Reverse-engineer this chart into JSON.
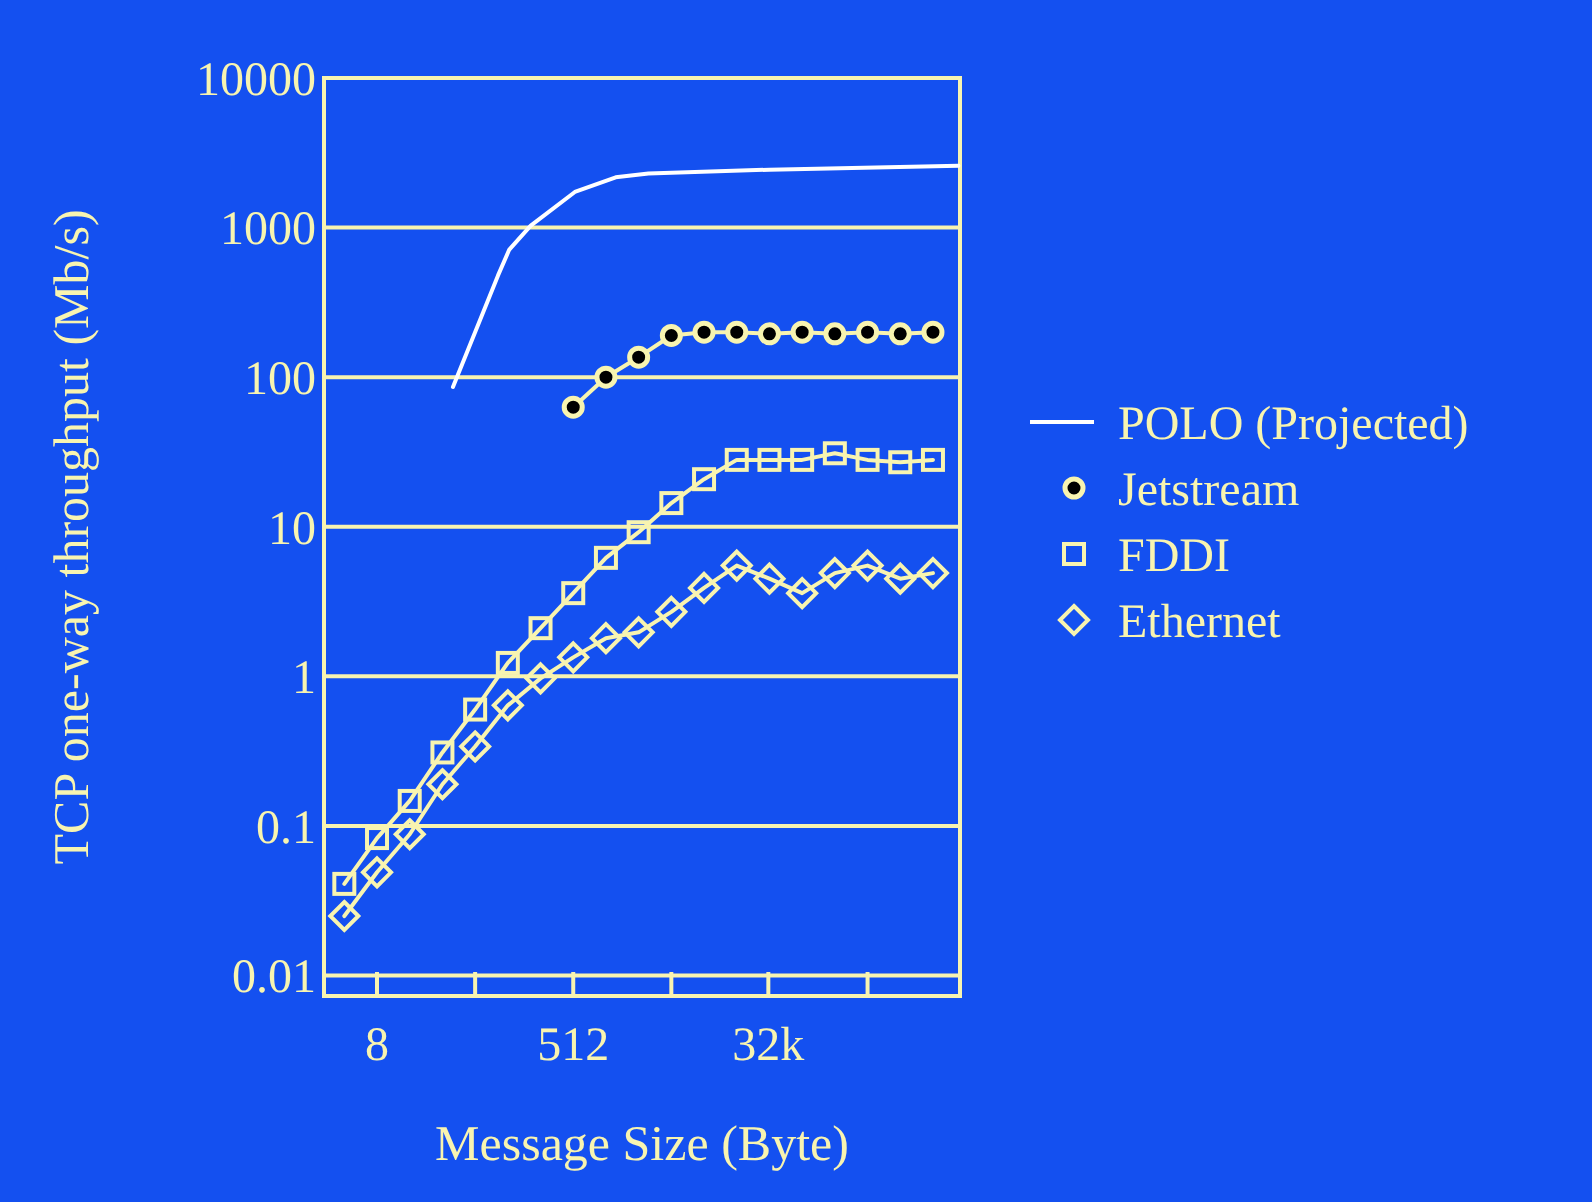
{
  "chart_data": {
    "type": "line",
    "xlabel": "Message Size (Byte)",
    "ylabel": "TCP one-way throughput (Mb/s)",
    "log": "xy",
    "grid": "y",
    "legend": "right",
    "xlim": [
      2.6,
      1860000
    ],
    "ylim": [
      0.0073,
      10000
    ],
    "xticks": [
      8,
      {
        "value": 64,
        "label": null
      },
      512,
      {
        "value": 4096,
        "label": null
      },
      {
        "value": 32000,
        "label": "32k"
      },
      {
        "value": 262144,
        "label": null
      }
    ],
    "yticks": [
      0.01,
      0.1,
      1,
      10,
      100,
      1000,
      10000
    ],
    "series": [
      {
        "name": "POLO (Projected)",
        "color": "#ffffff",
        "marker": "none",
        "x": [
          40,
          104,
          132,
          208,
          530,
          1260,
          2520,
          32768,
          1800000
        ],
        "values": [
          86,
          479,
          713,
          1030,
          1730,
          2170,
          2300,
          2440,
          2590
        ]
      },
      {
        "name": "Jetstream",
        "color": "#f8f4b0",
        "marker": "circle",
        "x": [
          512,
          1024,
          2048,
          4096,
          8192,
          16384,
          32768,
          65536,
          131072,
          262144,
          524288,
          1048576
        ],
        "values": [
          63,
          100,
          136,
          190,
          200,
          200,
          195,
          200,
          195,
          200,
          195,
          200
        ]
      },
      {
        "name": "FDDI",
        "color": "#f8f4b0",
        "marker": "square",
        "x": [
          4,
          8,
          16,
          32,
          64,
          128,
          256,
          512,
          1024,
          2048,
          4096,
          8192,
          16384,
          32768,
          65536,
          131072,
          262144,
          524288,
          1048576
        ],
        "values": [
          0.041,
          0.083,
          0.147,
          0.31,
          0.6,
          1.23,
          2.1,
          3.6,
          6.2,
          9.2,
          14.4,
          20.8,
          28,
          28,
          28,
          31,
          28,
          27,
          28
        ]
      },
      {
        "name": "Ethernet",
        "color": "#f8f4b0",
        "marker": "diamond",
        "x": [
          4,
          8,
          16,
          32,
          64,
          128,
          256,
          512,
          1024,
          2048,
          4096,
          8192,
          16384,
          32768,
          65536,
          131072,
          262144,
          524288,
          1048576
        ],
        "values": [
          0.025,
          0.049,
          0.088,
          0.19,
          0.34,
          0.64,
          0.97,
          1.34,
          1.8,
          1.97,
          2.7,
          3.9,
          5.5,
          4.5,
          3.6,
          4.9,
          5.5,
          4.5,
          4.9
        ]
      }
    ]
  }
}
